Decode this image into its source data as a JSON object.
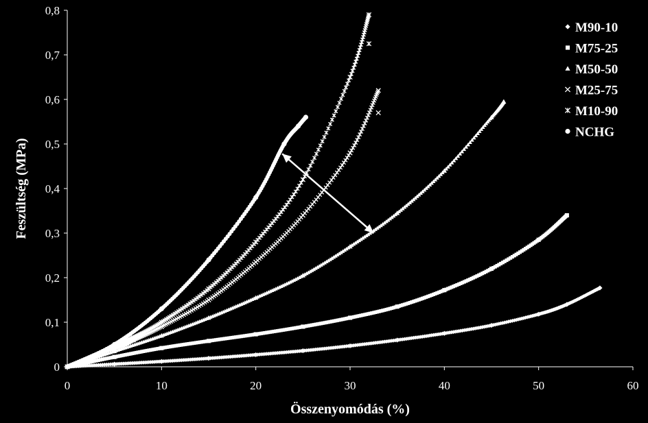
{
  "chart_data": {
    "type": "scatter",
    "xlabel": "Összenyomódás (%)",
    "ylabel": "Feszültség (MPa)",
    "xlim": [
      0,
      60
    ],
    "ylim": [
      0,
      0.8
    ],
    "xticks": [
      "0",
      "10",
      "20",
      "30",
      "40",
      "50",
      "60"
    ],
    "yticks": [
      "0",
      "0,1",
      "0,2",
      "0,3",
      "0,4",
      "0,5",
      "0,6",
      "0,7",
      "0,8"
    ],
    "grid": false,
    "legend_position": "top-right",
    "background": "#000000",
    "foreground": "#ffffff",
    "series": [
      {
        "name": "M90-10",
        "marker": "diamond",
        "x": [
          0,
          5,
          10,
          15,
          20,
          25,
          30,
          35,
          40,
          45,
          50,
          53,
          56.5
        ],
        "y": [
          0,
          0.006,
          0.012,
          0.019,
          0.027,
          0.036,
          0.047,
          0.06,
          0.075,
          0.093,
          0.118,
          0.14,
          0.177
        ]
      },
      {
        "name": "M75-25",
        "marker": "square",
        "x": [
          0,
          5,
          10,
          15,
          20,
          25,
          30,
          35,
          40,
          45,
          50,
          53
        ],
        "y": [
          0,
          0.022,
          0.042,
          0.058,
          0.073,
          0.09,
          0.11,
          0.135,
          0.172,
          0.22,
          0.285,
          0.34
        ]
      },
      {
        "name": "M50-50",
        "marker": "triangle",
        "x": [
          0,
          5,
          10,
          15,
          20,
          25,
          30,
          35,
          40,
          45,
          46.3
        ],
        "y": [
          0,
          0.035,
          0.07,
          0.11,
          0.155,
          0.205,
          0.27,
          0.345,
          0.44,
          0.56,
          0.595
        ]
      },
      {
        "name": "M25-75",
        "marker": "x",
        "x": [
          0,
          5,
          7,
          10,
          15,
          20,
          25,
          30,
          33
        ],
        "y": [
          0,
          0.04,
          0.06,
          0.09,
          0.15,
          0.235,
          0.34,
          0.48,
          0.62
        ]
      },
      {
        "name": "M10-90",
        "marker": "star",
        "x": [
          0,
          5,
          7,
          10,
          15,
          20,
          25,
          30,
          32
        ],
        "y": [
          0,
          0.045,
          0.065,
          0.1,
          0.175,
          0.28,
          0.42,
          0.65,
          0.79
        ]
      },
      {
        "name": "NCHG",
        "marker": "circle",
        "x": [
          0,
          5,
          10,
          15,
          20,
          23,
          24.5,
          25.3
        ],
        "y": [
          0,
          0.05,
          0.13,
          0.24,
          0.38,
          0.5,
          0.54,
          0.56
        ]
      }
    ],
    "outliers": [
      {
        "series": "M10-90",
        "x": 32,
        "y": 0.725
      },
      {
        "series": "M25-75",
        "x": 33,
        "y": 0.57
      }
    ],
    "annotation": {
      "type": "double-arrow",
      "from": [
        22.8,
        0.478
      ],
      "to": [
        32.5,
        0.3
      ]
    }
  }
}
